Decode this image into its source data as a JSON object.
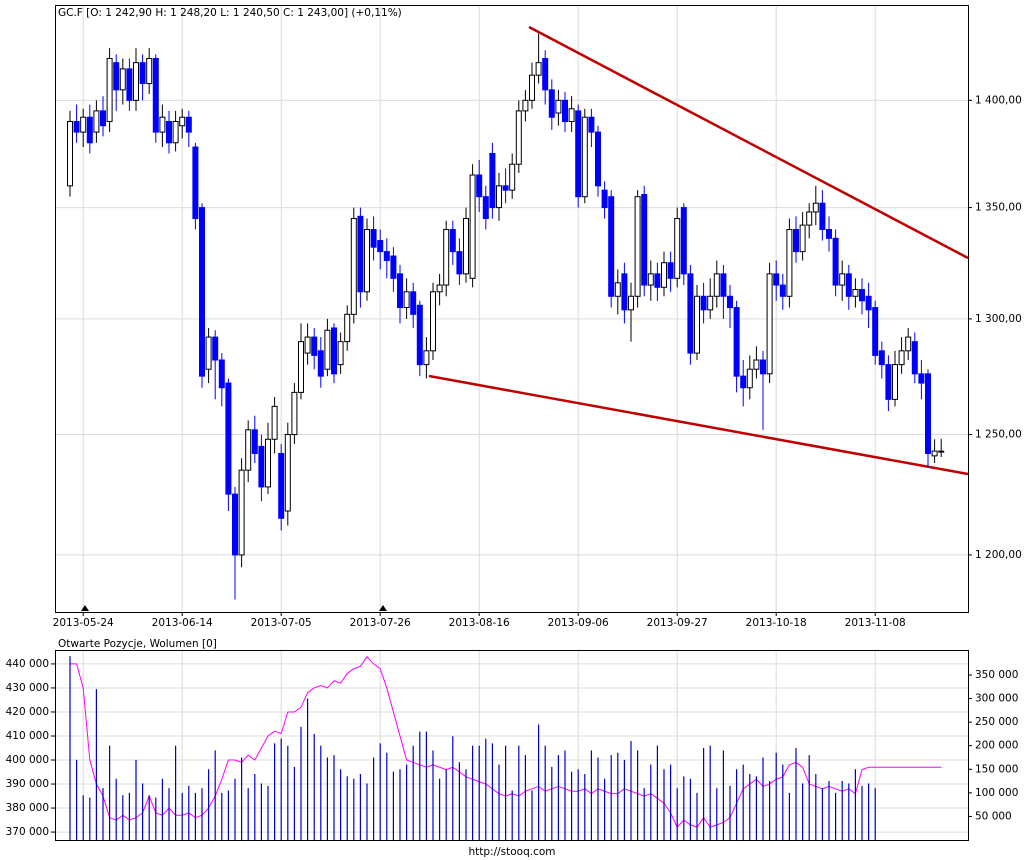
{
  "chart_data": [
    {
      "type": "candlestick",
      "title": "GC.F [O: 1 242,90  H: 1 248,20  L: 1 240,50  C: 1 243,00] (+0,11%)",
      "categories": [
        null,
        null,
        "2013-05-24",
        null,
        null,
        null,
        null,
        null,
        null,
        null,
        null,
        null,
        null,
        null,
        null,
        null,
        null,
        "2013-06-14",
        null,
        null,
        null,
        null,
        null,
        null,
        null,
        null,
        null,
        null,
        null,
        null,
        null,
        null,
        "2013-07-05",
        null,
        null,
        null,
        null,
        null,
        null,
        null,
        null,
        null,
        null,
        null,
        null,
        null,
        null,
        "2013-07-26",
        null,
        null,
        null,
        null,
        null,
        null,
        null,
        null,
        null,
        null,
        null,
        null,
        null,
        null,
        "2013-08-16",
        null,
        null,
        null,
        null,
        null,
        null,
        null,
        null,
        null,
        null,
        null,
        null,
        null,
        null,
        "2013-09-06",
        null,
        null,
        null,
        null,
        null,
        null,
        null,
        null,
        null,
        null,
        null,
        null,
        null,
        null,
        "2013-09-27",
        null,
        null,
        null,
        null,
        null,
        null,
        null,
        null,
        null,
        null,
        null,
        null,
        null,
        null,
        "2013-10-18",
        null,
        null,
        null,
        null,
        null,
        null,
        null,
        null,
        null,
        null,
        null,
        null,
        null,
        null,
        "2013-11-08",
        null,
        null,
        null,
        null,
        null,
        null,
        null,
        null,
        null,
        null
      ],
      "open": [
        1360,
        1390,
        1385,
        1392,
        1385,
        1395,
        1390,
        1418,
        1405,
        1415,
        1400,
        1418,
        1408,
        1420,
        1385,
        1390,
        1380,
        1388,
        1392,
        1378,
        1350,
        1278,
        1292,
        1282,
        1272,
        1225,
        1200,
        1235,
        1252,
        1245,
        1228,
        1248,
        1242,
        1218,
        1250,
        1268,
        1285,
        1292,
        1286,
        1278,
        1296,
        1280,
        1290,
        1302,
        1346,
        1312,
        1340,
        1335,
        1330,
        1328,
        1320,
        1305,
        1312,
        1306,
        1280,
        1286,
        1312,
        1315,
        1340,
        1330,
        1320,
        1318,
        1365,
        1355,
        1375,
        1350,
        1360,
        1358,
        1370,
        1395,
        1400,
        1412,
        1420,
        1405,
        1394,
        1400,
        1390,
        1395,
        1355,
        1392,
        1385,
        1358,
        1355,
        1310,
        1320,
        1304,
        1310,
        1356,
        1315,
        1320,
        1314,
        1325,
        1318,
        1350,
        1320,
        1285,
        1310,
        1304,
        1310,
        1320,
        1310,
        1305,
        1275,
        1270,
        1278,
        1282,
        1276,
        1320,
        1315,
        1310,
        1340,
        1330,
        1342,
        1348,
        1352,
        1340,
        1336,
        1315,
        1320,
        1310,
        1313,
        1310,
        1305,
        1286,
        1280,
        1265,
        1280,
        1286,
        1290,
        1276,
        1276,
        1241,
        1242.9
      ],
      "high": [
        1395,
        1398,
        1396,
        1398,
        1400,
        1402,
        1425,
        1422,
        1420,
        1420,
        1425,
        1422,
        1425,
        1422,
        1398,
        1395,
        1395,
        1396,
        1395,
        1380,
        1352,
        1296,
        1295,
        1285,
        1274,
        1228,
        1240,
        1256,
        1258,
        1250,
        1255,
        1266,
        1246,
        1255,
        1272,
        1298,
        1298,
        1296,
        1292,
        1300,
        1298,
        1294,
        1306,
        1350,
        1350,
        1345,
        1346,
        1340,
        1336,
        1332,
        1324,
        1318,
        1316,
        1308,
        1292,
        1316,
        1320,
        1344,
        1344,
        1336,
        1350,
        1370,
        1372,
        1360,
        1380,
        1366,
        1368,
        1375,
        1400,
        1405,
        1418,
        1432,
        1424,
        1410,
        1405,
        1404,
        1402,
        1398,
        1396,
        1396,
        1388,
        1362,
        1358,
        1322,
        1325,
        1316,
        1358,
        1360,
        1326,
        1325,
        1330,
        1330,
        1350,
        1352,
        1324,
        1315,
        1316,
        1318,
        1326,
        1324,
        1315,
        1308,
        1282,
        1284,
        1288,
        1286,
        1325,
        1326,
        1320,
        1345,
        1346,
        1348,
        1352,
        1360,
        1358,
        1346,
        1340,
        1326,
        1324,
        1318,
        1318,
        1316,
        1308,
        1290,
        1284,
        1286,
        1292,
        1296,
        1294,
        1282,
        1278,
        1248,
        1248.2
      ],
      "low": [
        1355,
        1380,
        1378,
        1375,
        1380,
        1383,
        1385,
        1395,
        1398,
        1395,
        1395,
        1400,
        1403,
        1380,
        1378,
        1375,
        1376,
        1382,
        1378,
        1340,
        1270,
        1272,
        1265,
        1262,
        1218,
        1182,
        1195,
        1230,
        1238,
        1222,
        1225,
        1242,
        1210,
        1212,
        1246,
        1265,
        1280,
        1278,
        1270,
        1275,
        1272,
        1276,
        1286,
        1298,
        1305,
        1308,
        1326,
        1322,
        1318,
        1312,
        1298,
        1300,
        1296,
        1275,
        1274,
        1282,
        1306,
        1310,
        1324,
        1315,
        1316,
        1314,
        1348,
        1340,
        1345,
        1344,
        1352,
        1354,
        1366,
        1390,
        1396,
        1408,
        1398,
        1386,
        1388,
        1385,
        1385,
        1350,
        1352,
        1378,
        1355,
        1345,
        1305,
        1302,
        1298,
        1290,
        1305,
        1310,
        1308,
        1308,
        1310,
        1312,
        1314,
        1315,
        1280,
        1282,
        1298,
        1300,
        1305,
        1300,
        1296,
        1268,
        1262,
        1265,
        1274,
        1252,
        1272,
        1308,
        1304,
        1305,
        1325,
        1326,
        1336,
        1342,
        1335,
        1330,
        1310,
        1308,
        1304,
        1305,
        1302,
        1296,
        1280,
        1274,
        1260,
        1262,
        1276,
        1282,
        1272,
        1265,
        1236,
        1238,
        1240.5
      ],
      "close": [
        1390,
        1385,
        1392,
        1380,
        1395,
        1388,
        1420,
        1405,
        1415,
        1400,
        1418,
        1408,
        1420,
        1385,
        1392,
        1380,
        1390,
        1392,
        1385,
        1345,
        1275,
        1292,
        1282,
        1270,
        1225,
        1200,
        1235,
        1252,
        1242,
        1228,
        1248,
        1262,
        1215,
        1250,
        1268,
        1290,
        1292,
        1284,
        1275,
        1295,
        1276,
        1290,
        1302,
        1345,
        1312,
        1340,
        1332,
        1330,
        1326,
        1318,
        1305,
        1312,
        1302,
        1280,
        1286,
        1312,
        1315,
        1340,
        1330,
        1320,
        1345,
        1365,
        1355,
        1345,
        1350,
        1360,
        1358,
        1370,
        1395,
        1400,
        1412,
        1418,
        1405,
        1392,
        1400,
        1390,
        1396,
        1355,
        1392,
        1385,
        1360,
        1350,
        1310,
        1316,
        1304,
        1310,
        1355,
        1315,
        1320,
        1314,
        1325,
        1318,
        1345,
        1320,
        1285,
        1310,
        1304,
        1310,
        1320,
        1310,
        1305,
        1275,
        1270,
        1278,
        1282,
        1276,
        1320,
        1315,
        1310,
        1340,
        1330,
        1342,
        1348,
        1352,
        1340,
        1336,
        1315,
        1320,
        1310,
        1313,
        1308,
        1304,
        1284,
        1280,
        1265,
        1280,
        1286,
        1292,
        1276,
        1272,
        1242,
        1243,
        1243
      ],
      "up_color": "#ffffff",
      "down_color": "#0000ff",
      "log_scale": true,
      "grid": true,
      "ylim": [
        1177,
        1446
      ],
      "yticks": [
        {
          "value": 1200,
          "label": "1 200,00"
        },
        {
          "value": 1250,
          "label": "1 250,00"
        },
        {
          "value": 1300,
          "label": "1 300,00"
        },
        {
          "value": 1350,
          "label": "1 350,00"
        },
        {
          "value": 1400,
          "label": "1 400,00"
        }
      ]
    },
    {
      "type": "combo",
      "title": "Otwarte Pozycje, Wolumen [0]",
      "grid": true,
      "series": [
        {
          "kind": "line",
          "color": "#ff00ff",
          "values": [
            440000,
            440000,
            430000,
            400000,
            390000,
            385000,
            376000,
            375000,
            377000,
            375000,
            376000,
            378000,
            385000,
            378000,
            377000,
            380000,
            377000,
            377000,
            378000,
            376000,
            377000,
            380000,
            385000,
            392000,
            400000,
            400000,
            399000,
            402000,
            400000,
            405000,
            410000,
            412000,
            411000,
            420000,
            420000,
            422000,
            428000,
            430000,
            431000,
            430000,
            433000,
            432000,
            436000,
            438000,
            439000,
            443000,
            440000,
            438000,
            430000,
            420000,
            410000,
            400000,
            399000,
            398000,
            397000,
            398000,
            397000,
            396000,
            397000,
            395000,
            393000,
            392000,
            391000,
            390000,
            388000,
            386000,
            385000,
            386000,
            385000,
            387000,
            388000,
            389000,
            387000,
            388000,
            389000,
            388000,
            387000,
            387000,
            388000,
            386000,
            388000,
            387000,
            386000,
            386000,
            388000,
            387000,
            386000,
            385000,
            386000,
            384000,
            382000,
            378000,
            372000,
            375000,
            373000,
            372000,
            376000,
            372000,
            373000,
            374000,
            376000,
            382000,
            388000,
            390000,
            392000,
            389000,
            390000,
            392000,
            393000,
            398000,
            399000,
            397000,
            390000,
            389000,
            388000,
            389000,
            388000,
            387000,
            388000,
            386000,
            396000,
            397000,
            397000,
            397000,
            397000,
            397000,
            397000,
            397000,
            397000,
            397000,
            397000,
            397000,
            397000
          ]
        },
        {
          "kind": "bar",
          "color": "#0000cc",
          "axis": "y2",
          "values": [
            390000,
            170000,
            95000,
            90000,
            320000,
            110000,
            200000,
            130000,
            95000,
            100000,
            170000,
            120000,
            95000,
            90000,
            130000,
            110000,
            200000,
            100000,
            115000,
            100000,
            110000,
            150000,
            190000,
            100000,
            105000,
            130000,
            175000,
            110000,
            140000,
            120000,
            115000,
            205000,
            215000,
            200000,
            155000,
            240000,
            300000,
            225000,
            200000,
            175000,
            180000,
            150000,
            135000,
            130000,
            140000,
            120000,
            175000,
            205000,
            185000,
            145000,
            150000,
            160000,
            200000,
            230000,
            230000,
            190000,
            130000,
            150000,
            220000,
            165000,
            150000,
            200000,
            200000,
            215000,
            205000,
            160000,
            200000,
            105000,
            200000,
            180000,
            105000,
            245000,
            200000,
            155000,
            180000,
            190000,
            145000,
            150000,
            140000,
            190000,
            175000,
            130000,
            180000,
            185000,
            170000,
            210000,
            190000,
            110000,
            160000,
            200000,
            150000,
            160000,
            110000,
            135000,
            130000,
            100000,
            195000,
            200000,
            110000,
            190000,
            115000,
            150000,
            160000,
            140000,
            135000,
            175000,
            125000,
            185000,
            160000,
            100000,
            195000,
            120000,
            180000,
            140000,
            110000,
            125000,
            100000,
            125000,
            120000,
            150000,
            115000,
            120000,
            110000,
            null,
            null,
            null,
            null,
            null,
            null,
            null,
            null,
            null,
            null
          ]
        }
      ],
      "ylim": [
        366700,
        445800
      ],
      "yticks": [
        {
          "value": 370000,
          "label": "370 000"
        },
        {
          "value": 380000,
          "label": "380 000"
        },
        {
          "value": 390000,
          "label": "390 000"
        },
        {
          "value": 400000,
          "label": "400 000"
        },
        {
          "value": 410000,
          "label": "410 000"
        },
        {
          "value": 420000,
          "label": "420 000"
        },
        {
          "value": 430000,
          "label": "430 000"
        },
        {
          "value": 440000,
          "label": "440 000"
        }
      ],
      "y2lim": [
        0,
        403000
      ],
      "y2ticks": [
        {
          "value": 50000,
          "label": "50 000"
        },
        {
          "value": 100000,
          "label": "100 000"
        },
        {
          "value": 150000,
          "label": "150 000"
        },
        {
          "value": 200000,
          "label": "200 000"
        },
        {
          "value": 250000,
          "label": "250 000"
        },
        {
          "value": 300000,
          "label": "300 000"
        },
        {
          "value": 350000,
          "label": "350 000"
        }
      ]
    }
  ],
  "footer": "http://stooq.com"
}
